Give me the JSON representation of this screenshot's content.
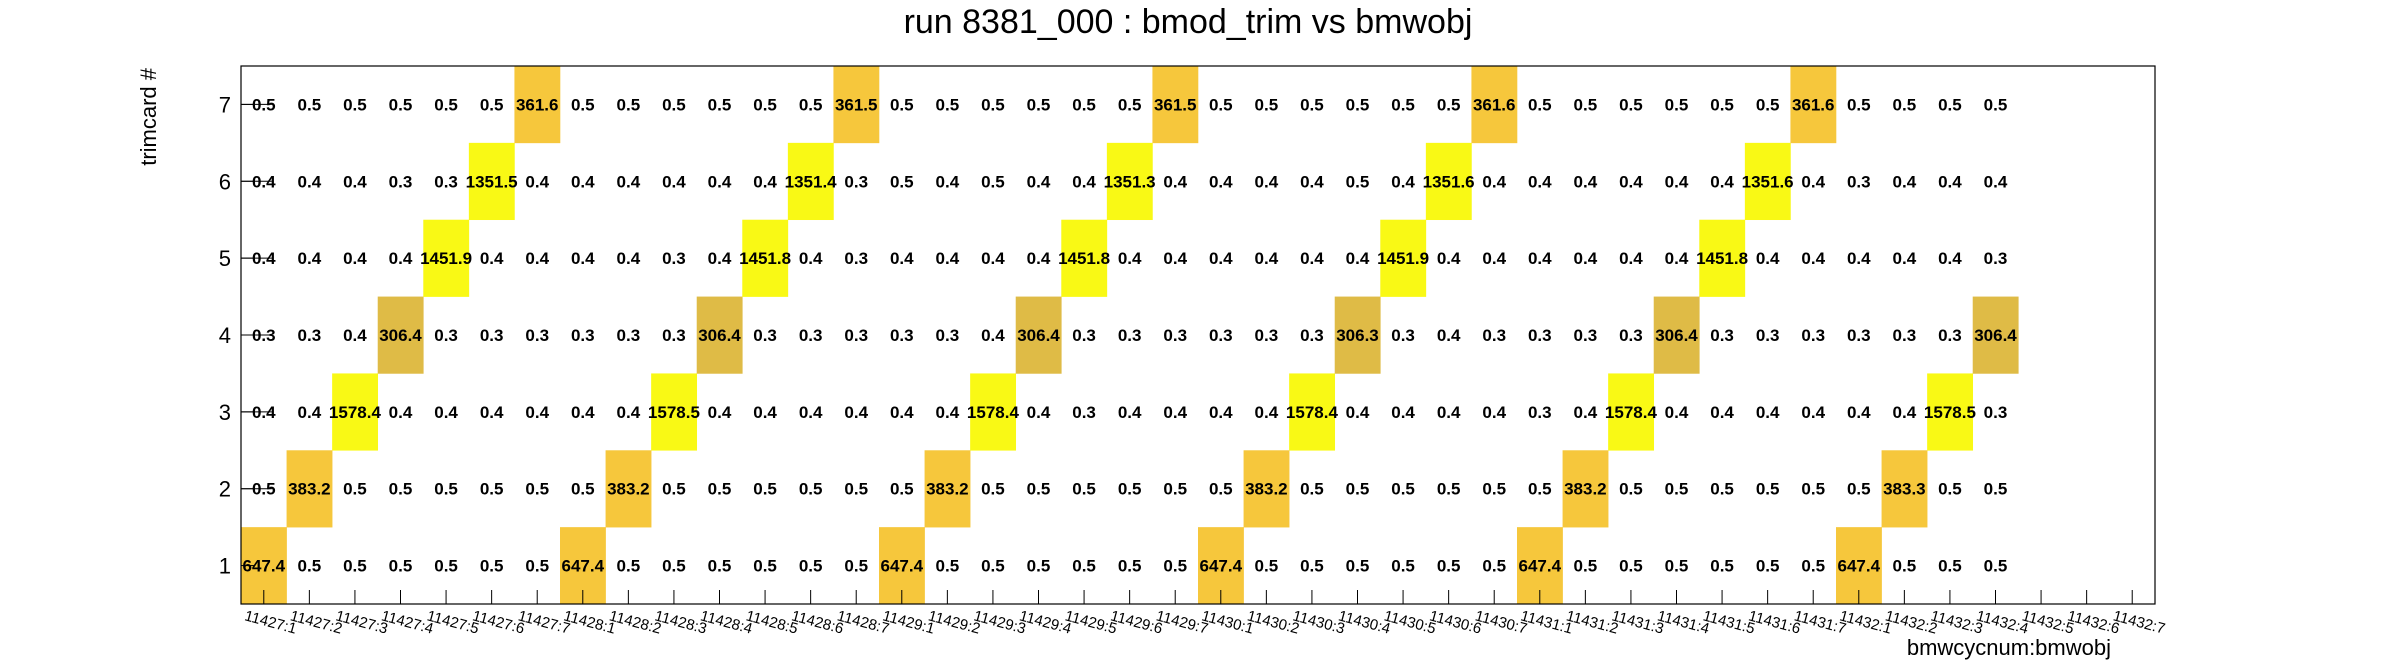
{
  "chart_data": {
    "type": "heatmap",
    "title": "run 8381_000 : bmod_trim vs bmwobj",
    "xlabel": "bmwcycnum:bmwobj",
    "ylabel": "trimcard #",
    "y_categories": [
      "1",
      "2",
      "3",
      "4",
      "5",
      "6",
      "7"
    ],
    "x_categories": [
      "11427:1",
      "11427:2",
      "11427:3",
      "11427:4",
      "11427:5",
      "11427:6",
      "11427:7",
      "11428:1",
      "11428:2",
      "11428:3",
      "11428:4",
      "11428:5",
      "11428:6",
      "11428:7",
      "11429:1",
      "11429:2",
      "11429:3",
      "11429:4",
      "11429:5",
      "11429:6",
      "11429:7",
      "11430:1",
      "11430:2",
      "11430:3",
      "11430:4",
      "11430:5",
      "11430:6",
      "11430:7",
      "11431:1",
      "11431:2",
      "11431:3",
      "11431:4",
      "11431:5",
      "11431:6",
      "11431:7",
      "11432:1",
      "11432:2",
      "11432:3",
      "11432:4",
      "11432:5",
      "11432:6",
      "11432:7"
    ],
    "series": [
      {
        "values": [
          647.4,
          0.5,
          0.5,
          0.5,
          0.5,
          0.5,
          0.5,
          647.4,
          0.5,
          0.5,
          0.5,
          0.5,
          0.5,
          0.5,
          647.4,
          0.5,
          0.5,
          0.5,
          0.5,
          0.5,
          0.5,
          647.4,
          0.5,
          0.5,
          0.5,
          0.5,
          0.5,
          0.5,
          647.4,
          0.5,
          0.5,
          0.5,
          0.5,
          0.5,
          0.5,
          647.4,
          0.5,
          0.5,
          0.5,
          null,
          null,
          null
        ]
      },
      {
        "values": [
          0.5,
          383.2,
          0.5,
          0.5,
          0.5,
          0.5,
          0.5,
          0.5,
          383.2,
          0.5,
          0.5,
          0.5,
          0.5,
          0.5,
          0.5,
          383.2,
          0.5,
          0.5,
          0.5,
          0.5,
          0.5,
          0.5,
          383.2,
          0.5,
          0.5,
          0.5,
          0.5,
          0.5,
          0.5,
          383.2,
          0.5,
          0.5,
          0.5,
          0.5,
          0.5,
          0.5,
          383.3,
          0.5,
          0.5,
          null,
          null,
          null
        ]
      },
      {
        "values": [
          0.4,
          0.4,
          1578.4,
          0.4,
          0.4,
          0.4,
          0.4,
          0.4,
          0.4,
          1578.5,
          0.4,
          0.4,
          0.4,
          0.4,
          0.4,
          0.4,
          1578.4,
          0.4,
          0.3,
          0.4,
          0.4,
          0.4,
          0.4,
          1578.4,
          0.4,
          0.4,
          0.4,
          0.4,
          0.3,
          0.4,
          1578.4,
          0.4,
          0.4,
          0.4,
          0.4,
          0.4,
          0.4,
          1578.5,
          0.3,
          null,
          null,
          null
        ]
      },
      {
        "values": [
          0.3,
          0.3,
          0.4,
          306.4,
          0.3,
          0.3,
          0.3,
          0.3,
          0.3,
          0.3,
          306.4,
          0.3,
          0.3,
          0.3,
          0.3,
          0.3,
          0.4,
          306.4,
          0.3,
          0.3,
          0.3,
          0.3,
          0.3,
          0.3,
          306.3,
          0.3,
          0.4,
          0.3,
          0.3,
          0.3,
          0.3,
          306.4,
          0.3,
          0.3,
          0.3,
          0.3,
          0.3,
          0.3,
          306.4,
          null,
          null,
          null
        ]
      },
      {
        "values": [
          0.4,
          0.4,
          0.4,
          0.4,
          1451.9,
          0.4,
          0.4,
          0.4,
          0.4,
          0.3,
          0.4,
          1451.8,
          0.4,
          0.3,
          0.4,
          0.4,
          0.4,
          0.4,
          1451.8,
          0.4,
          0.4,
          0.4,
          0.4,
          0.4,
          0.4,
          1451.9,
          0.4,
          0.4,
          0.4,
          0.4,
          0.4,
          0.4,
          1451.8,
          0.4,
          0.4,
          0.4,
          0.4,
          0.4,
          0.3,
          null,
          null,
          null
        ]
      },
      {
        "values": [
          0.4,
          0.4,
          0.4,
          0.3,
          0.3,
          1351.5,
          0.4,
          0.4,
          0.4,
          0.4,
          0.4,
          0.4,
          1351.4,
          0.3,
          0.5,
          0.4,
          0.5,
          0.4,
          0.4,
          1351.3,
          0.4,
          0.4,
          0.4,
          0.4,
          0.5,
          0.4,
          1351.6,
          0.4,
          0.4,
          0.4,
          0.4,
          0.4,
          0.4,
          1351.6,
          0.4,
          0.3,
          0.4,
          0.4,
          0.4,
          null,
          null,
          null
        ]
      },
      {
        "values": [
          0.5,
          0.5,
          0.5,
          0.5,
          0.5,
          0.5,
          361.6,
          0.5,
          0.5,
          0.5,
          0.5,
          0.5,
          0.5,
          361.5,
          0.5,
          0.5,
          0.5,
          0.5,
          0.5,
          0.5,
          361.5,
          0.5,
          0.5,
          0.5,
          0.5,
          0.5,
          0.5,
          361.6,
          0.5,
          0.5,
          0.5,
          0.5,
          0.5,
          0.5,
          361.6,
          0.5,
          0.5,
          0.5,
          0.5,
          null,
          null,
          null
        ]
      }
    ],
    "grid": false,
    "colors": {
      "gold": "#f6c73c",
      "dark_gold": "#dfbb46",
      "yellow": "#f9f915",
      "frame": "#000000"
    }
  }
}
